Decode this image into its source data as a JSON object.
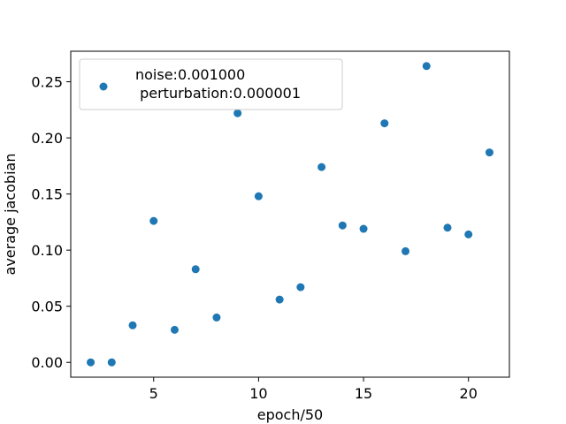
{
  "chart_data": {
    "type": "scatter",
    "xlabel": "epoch/50",
    "ylabel": "average jacobian",
    "xlim": [
      1.05,
      21.95
    ],
    "ylim": [
      -0.0132,
      0.2772
    ],
    "xticks": [
      5,
      10,
      15,
      20
    ],
    "xtick_labels": [
      "5",
      "10",
      "15",
      "20"
    ],
    "yticks": [
      0.0,
      0.05,
      0.1,
      0.15,
      0.2,
      0.25
    ],
    "ytick_labels": [
      "0.00",
      "0.05",
      "0.10",
      "0.15",
      "0.20",
      "0.25"
    ],
    "legend_position": "top-left",
    "grid": false,
    "series": [
      {
        "name": "noise:0.001000\n perturbation:0.000001",
        "legend_line1": "noise:0.001000",
        "legend_line2": " perturbation:0.000001",
        "color": "#1f77b4",
        "x": [
          2,
          3,
          4,
          5,
          6,
          7,
          8,
          9,
          10,
          11,
          12,
          13,
          14,
          15,
          16,
          17,
          18,
          19,
          20,
          21
        ],
        "y": [
          0.0,
          0.0,
          0.033,
          0.126,
          0.029,
          0.083,
          0.04,
          0.222,
          0.148,
          0.056,
          0.067,
          0.174,
          0.122,
          0.119,
          0.213,
          0.099,
          0.264,
          0.12,
          0.114,
          0.187
        ]
      }
    ]
  }
}
